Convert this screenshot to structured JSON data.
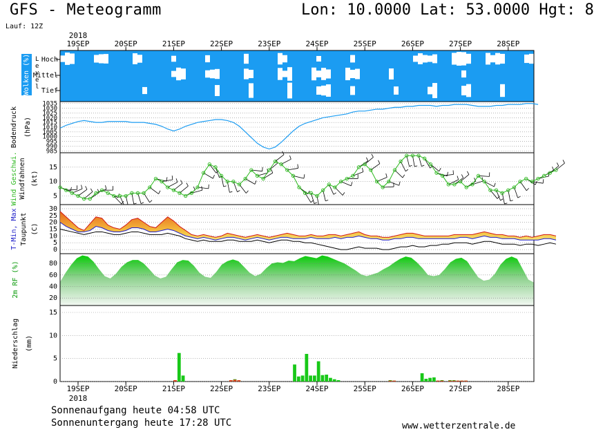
{
  "header": {
    "title": "GFS - Meteogramm",
    "coords": "Lon: 10.0000 Lat: 53.0000 Hgt: 8",
    "run": "Lauf: 12Z"
  },
  "footer": {
    "sunrise": "Sonnenaufgang heute 04:58 UTC",
    "sunset": "Sonnenuntergang heute 17:28 UTC",
    "site": "www.wetterzentrale.de"
  },
  "colors": {
    "cloud_bg": "#1b9cf2",
    "pressure_line": "#1b9cf2",
    "wind_line": "#2db81f",
    "tmax_fill": "#ef8b1f",
    "tmin_line": "#1e1ec8",
    "tmax_line": "#d01818",
    "dewpoint_line": "#000000",
    "rh_fill": "#18c818",
    "precip_bar": "#18c818",
    "precip_conv": "#d4411e"
  },
  "chart_data": {
    "type": "meteogram",
    "year": "2018",
    "days": [
      "19SEP",
      "20SEP",
      "21SEP",
      "22SEP",
      "23SEP",
      "24SEP",
      "25SEP",
      "26SEP",
      "27SEP",
      "28SEP"
    ],
    "time_step_hours": 3,
    "start": "2018-09-18T15:00Z",
    "panels": [
      {
        "id": "clouds",
        "ylabel": "Wolken (%)",
        "ylabel2": "Level",
        "levels": [
          "Hoch",
          "Mittel",
          "Tief"
        ]
      },
      {
        "id": "pressure",
        "ylabel": "Bodendruck",
        "unit": "(hPa)",
        "ylim": [
          983,
          1037
        ],
        "yticks": [
          985,
          990,
          995,
          1000,
          1005,
          1010,
          1015,
          1020,
          1025,
          1030,
          1035
        ],
        "values": [
          1009,
          1012,
          1014,
          1016,
          1017,
          1016,
          1015,
          1015,
          1016,
          1016,
          1016,
          1016,
          1015,
          1015,
          1015,
          1014,
          1013,
          1011,
          1008,
          1006,
          1008,
          1011,
          1013,
          1015,
          1016,
          1017,
          1018,
          1018,
          1017,
          1015,
          1011,
          1005,
          999,
          993,
          989,
          987,
          989,
          994,
          1000,
          1006,
          1011,
          1014,
          1016,
          1018,
          1020,
          1021,
          1022,
          1023,
          1024,
          1026,
          1027,
          1027,
          1028,
          1029,
          1029,
          1030,
          1031,
          1031,
          1032,
          1032,
          1033,
          1033,
          1033,
          1032,
          1033,
          1033,
          1034,
          1034,
          1034,
          1033,
          1032,
          1032,
          1032,
          1033,
          1033,
          1034,
          1034,
          1034,
          1035,
          1035,
          1034
        ]
      },
      {
        "id": "wind",
        "ylabel": "Wind Geschwi.",
        "ylabel2": "Windfahnen",
        "unit": "(kt)",
        "ylim": [
          2,
          20
        ],
        "yticks": [
          5,
          10,
          15
        ],
        "values": [
          8,
          7,
          6,
          5,
          4,
          4,
          6,
          7,
          6,
          5,
          5,
          5,
          6,
          6,
          6,
          8,
          11,
          10,
          8,
          7,
          6,
          5,
          6,
          8,
          13,
          16,
          15,
          12,
          10,
          10,
          9,
          11,
          14,
          12,
          11,
          14,
          17,
          16,
          14,
          12,
          8,
          6,
          6,
          5,
          7,
          9,
          8,
          10,
          11,
          12,
          15,
          16,
          14,
          10,
          8,
          10,
          14,
          17,
          19,
          19,
          19,
          18,
          16,
          13,
          12,
          9,
          9,
          10,
          8,
          9,
          12,
          10,
          7,
          7,
          6,
          7,
          8,
          10,
          11,
          10,
          11,
          12,
          13,
          14
        ]
      },
      {
        "id": "temperature",
        "ylabel": "T-Min, Max",
        "ylabel2": "Taupunkt",
        "unit": "(C)",
        "ylim": [
          -3,
          33
        ],
        "yticks": [
          0,
          5,
          10,
          15,
          20,
          25,
          30
        ],
        "tmax": [
          28,
          24,
          20,
          16,
          14,
          19,
          24,
          23,
          18,
          16,
          15,
          18,
          22,
          23,
          20,
          17,
          16,
          20,
          24,
          21,
          17,
          14,
          11,
          10,
          11,
          10,
          9,
          10,
          12,
          11,
          10,
          9,
          10,
          11,
          10,
          9,
          10,
          11,
          12,
          11,
          10,
          10,
          11,
          10,
          10,
          11,
          11,
          10,
          11,
          12,
          13,
          11,
          10,
          10,
          9,
          9,
          10,
          11,
          12,
          12,
          11,
          10,
          10,
          10,
          10,
          10,
          11,
          11,
          11,
          11,
          12,
          13,
          12,
          11,
          11,
          10,
          10,
          9,
          10,
          9,
          10,
          11,
          11,
          10
        ],
        "tmin": [
          20,
          17,
          15,
          13,
          13,
          14,
          17,
          16,
          14,
          13,
          13,
          14,
          16,
          16,
          15,
          13,
          13,
          14,
          15,
          14,
          12,
          10,
          9,
          8,
          9,
          8,
          7,
          8,
          9,
          9,
          8,
          7,
          8,
          9,
          8,
          7,
          8,
          9,
          9,
          8,
          8,
          8,
          9,
          8,
          8,
          8,
          9,
          8,
          9,
          9,
          10,
          9,
          8,
          8,
          7,
          7,
          8,
          8,
          9,
          9,
          8,
          8,
          8,
          8,
          8,
          8,
          8,
          9,
          9,
          8,
          9,
          10,
          9,
          9,
          8,
          8,
          8,
          7,
          7,
          7,
          7,
          8,
          8,
          7
        ],
        "dewpoint": [
          15,
          14,
          13,
          12,
          11,
          12,
          13,
          13,
          12,
          11,
          11,
          12,
          13,
          13,
          12,
          11,
          11,
          11,
          12,
          11,
          10,
          8,
          7,
          6,
          7,
          6,
          6,
          6,
          7,
          7,
          6,
          6,
          6,
          7,
          6,
          5,
          6,
          7,
          7,
          6,
          6,
          5,
          5,
          4,
          3,
          2,
          1,
          0,
          0,
          1,
          2,
          1,
          1,
          1,
          0,
          0,
          1,
          2,
          2,
          3,
          2,
          2,
          3,
          3,
          4,
          4,
          5,
          5,
          5,
          4,
          5,
          6,
          6,
          5,
          4,
          4,
          4,
          3,
          4,
          4,
          3,
          4,
          5,
          4
        ]
      },
      {
        "id": "rh",
        "ylabel": "2m RF (%)",
        "ylim": [
          7,
          97
        ],
        "yticks": [
          20,
          40,
          60,
          80
        ],
        "values": [
          48,
          64,
          78,
          89,
          94,
          92,
          83,
          70,
          58,
          54,
          62,
          74,
          82,
          86,
          86,
          80,
          70,
          59,
          54,
          57,
          70,
          82,
          86,
          85,
          76,
          64,
          57,
          55,
          65,
          78,
          84,
          87,
          84,
          74,
          64,
          58,
          62,
          72,
          80,
          82,
          81,
          85,
          84,
          89,
          93,
          91,
          89,
          94,
          92,
          88,
          84,
          80,
          74,
          68,
          61,
          58,
          61,
          64,
          70,
          75,
          82,
          88,
          92,
          90,
          82,
          72,
          60,
          58,
          60,
          70,
          82,
          88,
          90,
          84,
          70,
          56,
          50,
          52,
          62,
          78,
          88,
          92,
          88,
          70,
          52,
          47
        ]
      },
      {
        "id": "precip",
        "ylabel": "Niederschlag",
        "unit": "(mm)",
        "ylim": [
          0,
          16.5
        ],
        "yticks": [
          0,
          5,
          10,
          15
        ],
        "values": [
          0,
          0,
          0,
          0,
          0,
          0,
          0,
          0,
          0,
          0,
          0,
          0,
          0,
          0,
          0,
          0,
          0,
          0,
          0,
          0,
          0,
          0,
          0,
          0,
          0,
          0.3,
          6.2,
          1.3,
          0,
          0,
          0,
          0,
          0,
          0,
          0,
          0,
          0,
          0,
          0,
          0.3,
          0.5,
          0.3,
          0,
          0,
          0,
          0,
          0,
          0,
          0,
          0,
          0,
          0,
          0,
          0,
          0,
          3.7,
          1.1,
          1.3,
          6.0,
          1.3,
          1.3,
          4.4,
          1.4,
          1.5,
          0.8,
          0.5,
          0.3,
          0,
          0,
          0,
          0,
          0,
          0,
          0,
          0,
          0,
          0,
          0,
          0,
          0.3,
          0.2,
          0,
          0,
          0,
          0,
          0,
          0,
          1.8,
          0.6,
          0.8,
          0.9,
          0.2,
          0.3,
          0,
          0.3,
          0.3,
          0.2,
          0.2,
          0.2,
          0,
          0,
          0,
          0,
          0,
          0,
          0
        ],
        "convective": [
          0,
          0,
          0,
          0,
          0,
          0,
          0,
          0,
          0,
          0,
          0,
          0,
          0,
          0,
          0,
          0,
          0,
          0,
          0,
          0,
          0,
          0,
          0,
          0,
          0,
          0.3,
          0,
          0,
          0,
          0,
          0,
          0,
          0,
          0,
          0,
          0,
          0,
          0,
          0,
          0.3,
          0.4,
          0.3,
          0,
          0,
          0,
          0,
          0,
          0,
          0,
          0,
          0,
          0,
          0,
          0,
          0,
          0,
          0,
          0,
          0,
          0,
          0,
          0,
          0,
          0,
          0,
          0,
          0,
          0,
          0,
          0,
          0,
          0,
          0,
          0,
          0,
          0,
          0,
          0,
          0,
          0.2,
          0.2,
          0,
          0,
          0,
          0,
          0,
          0,
          0,
          0,
          0,
          0,
          0.2,
          0.2,
          0,
          0.2,
          0.2,
          0.2,
          0.2,
          0.2,
          0,
          0,
          0,
          0,
          0,
          0,
          0
        ]
      }
    ]
  }
}
